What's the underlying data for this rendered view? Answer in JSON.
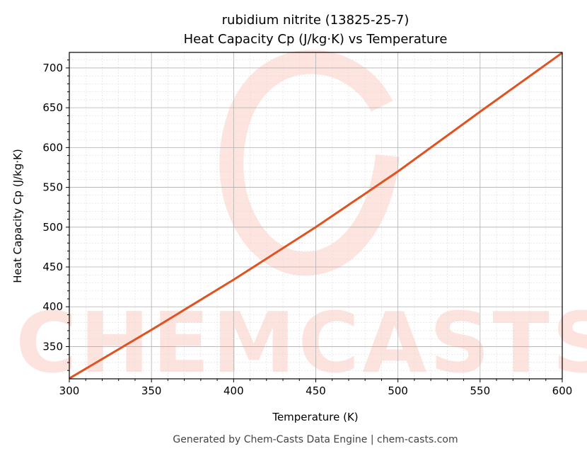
{
  "chart_data": {
    "type": "line",
    "title": "rubidium nitrite (13825-25-7)",
    "subtitle": "Heat Capacity Cp (J/kg·K) vs Temperature",
    "xlabel": "Temperature (K)",
    "ylabel": "Heat Capacity Cp (J/kg·K)",
    "xlim": [
      300,
      600
    ],
    "ylim": [
      309.5,
      719.5
    ],
    "xticks": [
      300,
      350,
      400,
      450,
      500,
      550,
      600
    ],
    "yticks": [
      350,
      400,
      450,
      500,
      550,
      600,
      650,
      700
    ],
    "grid": true,
    "x": [
      300,
      350,
      400,
      450,
      500,
      550,
      600
    ],
    "values": [
      310,
      371,
      434,
      500,
      570,
      645,
      719
    ],
    "line_color": "#e0521f",
    "watermark": "CHEMCASTS"
  },
  "footer": "Generated by Chem-Casts Data Engine | chem-casts.com"
}
